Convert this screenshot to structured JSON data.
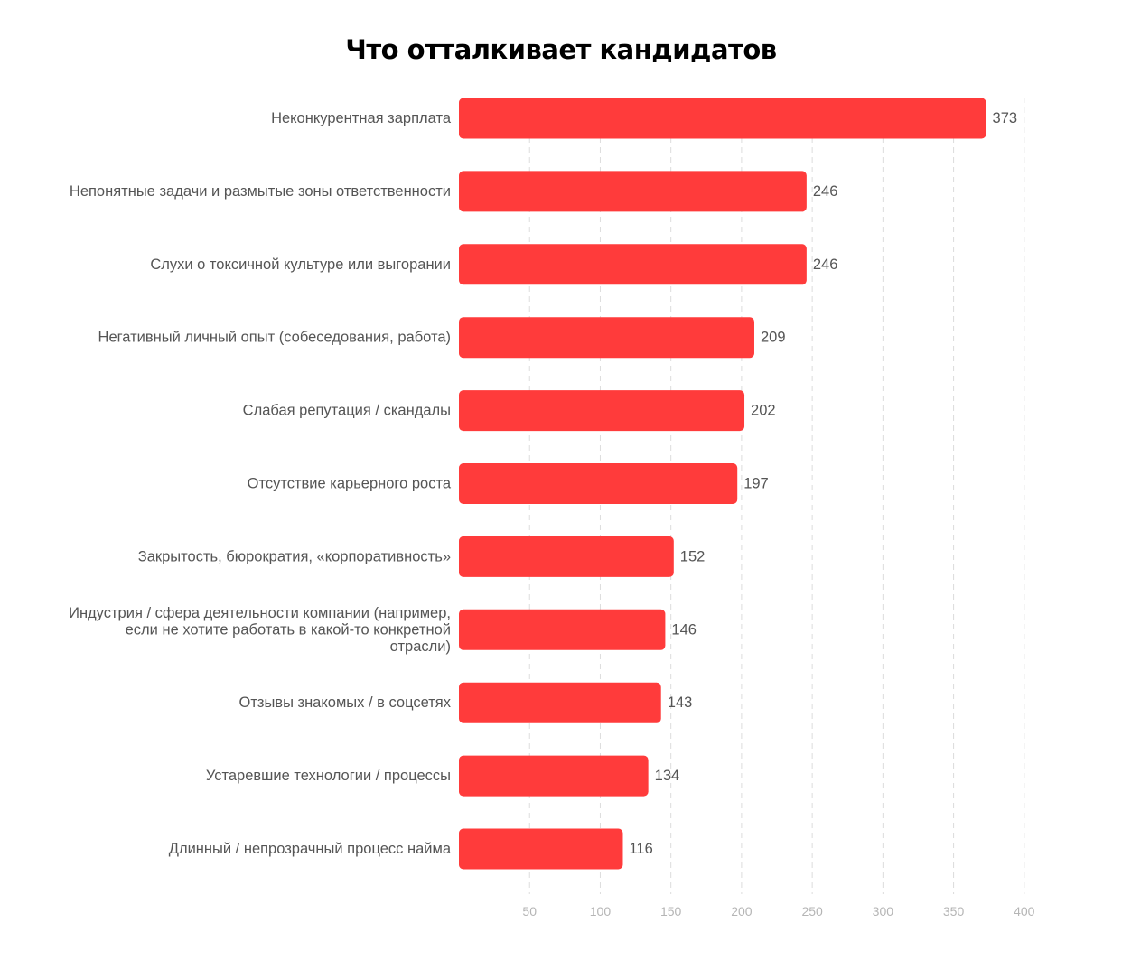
{
  "chart_data": {
    "type": "bar",
    "orientation": "horizontal",
    "title": "Что отталкивает кандидатов",
    "categories": [
      [
        "Неконкурентная зарплата"
      ],
      [
        "Непонятные задачи и размытые зоны ответственности"
      ],
      [
        "Слухи о токсичной культуре или выгорании"
      ],
      [
        "Негативный личный опыт (собеседования, работа)"
      ],
      [
        "Слабая репутация / скандалы"
      ],
      [
        "Отсутствие карьерного роста"
      ],
      [
        "Закрытость, бюрократия, «корпоративность»"
      ],
      [
        "Индустрия / сфера деятельности компании (например,",
        "если не хотите работать в какой-то конкретной",
        "отрасли)"
      ],
      [
        "Отзывы знакомых / в соцсетях"
      ],
      [
        "Устаревшие технологии / процессы"
      ],
      [
        "Длинный / непрозрачный процесс найма"
      ]
    ],
    "values": [
      373,
      246,
      246,
      209,
      202,
      197,
      152,
      146,
      143,
      134,
      116
    ],
    "xlim": [
      0,
      400
    ],
    "xticks": [
      50,
      100,
      150,
      200,
      250,
      300,
      350,
      400
    ],
    "grid": true,
    "bar_color": "#ff3b3b",
    "xlabel": "",
    "ylabel": ""
  }
}
